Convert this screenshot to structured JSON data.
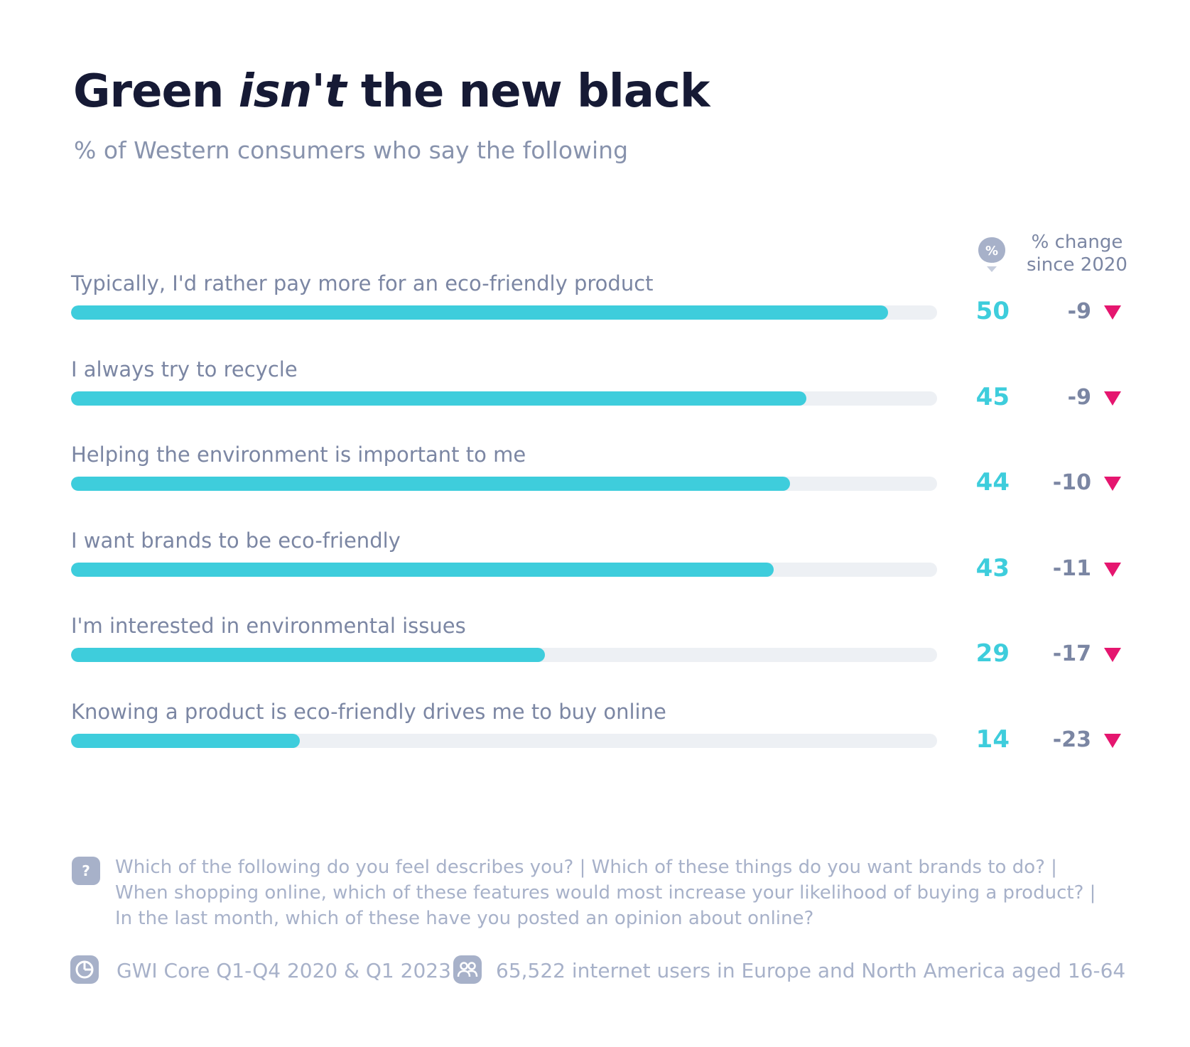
{
  "title": {
    "part1": "Green ",
    "emphasis": "isn't",
    "part2": " the new black"
  },
  "subtitle": "% of Western consumers who say the following",
  "columns": {
    "value_badge": "%",
    "change_line1": "% change",
    "change_line2": "since 2020"
  },
  "chart_data": {
    "type": "bar",
    "orientation": "horizontal",
    "title": "Green isn't the new black",
    "subtitle": "% of Western consumers who say the following",
    "xlim": [
      0,
      53
    ],
    "categories": [
      "Typically, I'd rather pay more for an eco-friendly product",
      "I always try to recycle",
      "Helping the environment is important to me",
      "I want brands to be eco-friendly",
      "I'm interested in environmental issues",
      "Knowing a product is eco-friendly drives me to buy online"
    ],
    "values": [
      50,
      45,
      44,
      43,
      29,
      14
    ],
    "change_since_2020": [
      -9,
      -9,
      -10,
      -11,
      -17,
      -23
    ]
  },
  "colors": {
    "bar": "#3ecddc",
    "track": "#edf0f4",
    "title": "#161a35",
    "muted": "#7b86a3",
    "light": "#a7b1c9",
    "down_arrow": "#e5166f"
  },
  "footer": {
    "question_icon": "question-icon",
    "question_lines": [
      "Which of the following do you feel describes you? | Which of these things do you want brands to do? |",
      "When shopping online, which of these features would most increase your likelihood of buying a product? |",
      "In the last month, which of these have you posted an opinion about online?"
    ],
    "source_icon": "chart-logo-icon",
    "source": "GWI Core Q1-Q4 2020 & Q1 2023",
    "audience_icon": "people-icon",
    "audience": "65,522 internet users in Europe and North America aged 16-64"
  }
}
